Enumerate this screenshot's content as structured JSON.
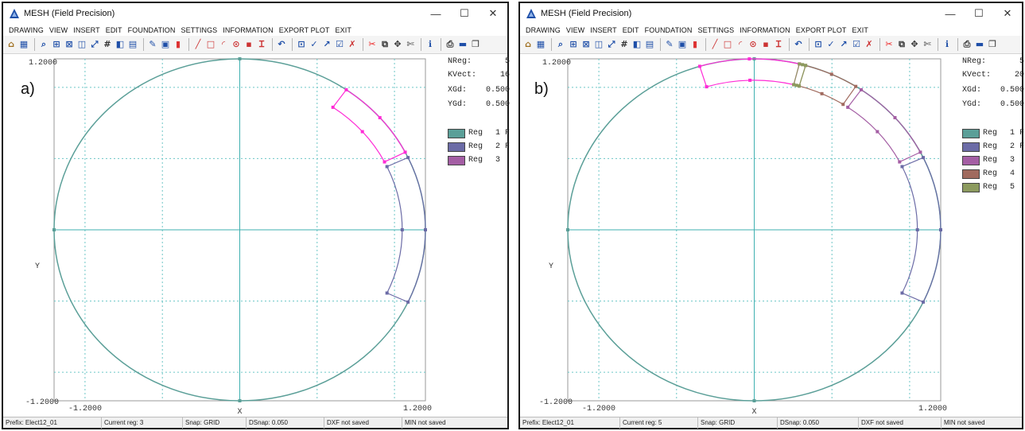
{
  "windows": [
    {
      "id": "a",
      "title": "MESH (Field Precision)",
      "menu": [
        "DRAWING",
        "VIEW",
        "INSERT",
        "EDIT",
        "FOUNDATION",
        "SETTINGS",
        "INFORMATION",
        "EXPORT PLOT",
        "EXIT"
      ],
      "panel_label": "a)",
      "stats": [
        {
          "label": "NReg:",
          "value": "5"
        },
        {
          "label": "KVect:",
          "value": "16"
        },
        {
          "label": "XGd:",
          "value": "0.500"
        },
        {
          "label": "YGd:",
          "value": "0.500"
        }
      ],
      "legend": [
        {
          "label": "Reg",
          "num": "1",
          "flag": "F",
          "color": "#5b9f98"
        },
        {
          "label": "Reg",
          "num": "2",
          "flag": "F",
          "color": "#6b6ba6"
        },
        {
          "label": "Reg",
          "num": "3",
          "flag": "",
          "color": "#a45ea4"
        }
      ],
      "axes": {
        "ytop": "1.2000",
        "ybottom": "-1.2000",
        "xleft": "-1.2000",
        "xright": "1.2000",
        "xlabel": "X",
        "ylabel": "Y"
      },
      "status": [
        "Prefix: Elect12_01",
        "Current reg:  3",
        "Snap: GRID",
        "DSnap:   0.050",
        "DXF not saved",
        "MIN not saved"
      ]
    },
    {
      "id": "b",
      "title": "MESH (Field Precision)",
      "menu": [
        "DRAWING",
        "VIEW",
        "INSERT",
        "EDIT",
        "FOUNDATION",
        "SETTINGS",
        "INFORMATION",
        "EXPORT PLOT",
        "EXIT"
      ],
      "panel_label": "b)",
      "stats": [
        {
          "label": "NReg:",
          "value": "5"
        },
        {
          "label": "KVect:",
          "value": "20"
        },
        {
          "label": "XGd:",
          "value": "0.500"
        },
        {
          "label": "YGd:",
          "value": "0.500"
        }
      ],
      "legend": [
        {
          "label": "Reg",
          "num": "1",
          "flag": "F",
          "color": "#5b9f98"
        },
        {
          "label": "Reg",
          "num": "2",
          "flag": "F",
          "color": "#6b6ba6"
        },
        {
          "label": "Reg",
          "num": "3",
          "flag": "",
          "color": "#a45ea4"
        },
        {
          "label": "Reg",
          "num": "4",
          "flag": "",
          "color": "#a06a5e"
        },
        {
          "label": "Reg",
          "num": "5",
          "flag": "",
          "color": "#8c9a5e"
        }
      ],
      "axes": {
        "ytop": "1.2000",
        "ybottom": "-1.2000",
        "xleft": "-1.2000",
        "xright": "1.2000",
        "xlabel": "X",
        "ylabel": "Y"
      },
      "status": [
        "Prefix: Elect12_01",
        "Current reg:  5",
        "Snap: GRID",
        "DSnap:   0.050",
        "DXF not saved",
        "MIN not saved"
      ]
    }
  ],
  "colors": {
    "circle": "#5b9f98",
    "axis": "#3fb0b0",
    "grid": "#6cc6c6",
    "region2": "#6b6ba6",
    "region_active": "#ff2bd6",
    "region3": "#a45ea4",
    "region4": "#a06a5e",
    "region5": "#8c9a5e"
  }
}
